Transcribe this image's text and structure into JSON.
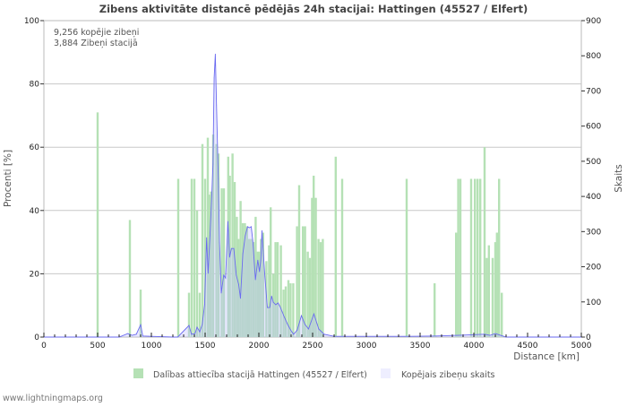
{
  "chart_data": {
    "type": "bar",
    "title": "Zibens aktivitāte distancē pēdējās 24h stacijai: Hattingen (45527 / Elfert)",
    "info_lines": [
      "9,256 kopējie zibeņi",
      "3,884 Zibeņi stacijā"
    ],
    "xlabel": "Distance   [km]",
    "ylabel": "Procenti   [%]",
    "y2label": "Skaits",
    "xlim": [
      0,
      5000
    ],
    "ylim": [
      0,
      100
    ],
    "y2lim": [
      0,
      900
    ],
    "xticks": [
      "0",
      "500",
      "1000",
      "1500",
      "2000",
      "2500",
      "3000",
      "3500",
      "4000",
      "4500",
      "5000"
    ],
    "yticks": [
      "0",
      "20",
      "40",
      "60",
      "80",
      "100"
    ],
    "y2ticks": [
      "0",
      "100",
      "200",
      "300",
      "400",
      "500",
      "600",
      "700",
      "800",
      "900"
    ],
    "grid": true,
    "legend_position": "bottom",
    "series": [
      {
        "name": "Dalības attiecība stacijā Hattingen (45527 / Elfert)",
        "type": "bar",
        "axis": "left",
        "color": "#b5e1b5",
        "x": [
          500,
          800,
          900,
          1250,
          1350,
          1375,
          1400,
          1425,
          1450,
          1475,
          1500,
          1525,
          1540,
          1555,
          1575,
          1605,
          1625,
          1655,
          1675,
          1715,
          1730,
          1755,
          1775,
          1795,
          1810,
          1830,
          1850,
          1870,
          1890,
          1910,
          1930,
          1950,
          1970,
          1990,
          2005,
          2020,
          2040,
          2070,
          2095,
          2110,
          2135,
          2155,
          2175,
          2205,
          2230,
          2250,
          2275,
          2295,
          2320,
          2355,
          2375,
          2410,
          2430,
          2455,
          2475,
          2495,
          2510,
          2530,
          2555,
          2575,
          2595,
          2715,
          2775,
          3375,
          3635,
          3835,
          3855,
          3875,
          3975,
          4010,
          4035,
          4060,
          4100,
          4120,
          4140,
          4175,
          4200,
          4215,
          4235,
          4260
        ],
        "values": [
          71,
          37,
          15,
          50,
          14,
          50,
          50,
          40,
          14,
          61,
          50,
          63,
          45,
          46,
          64,
          61,
          58,
          47,
          47,
          57,
          51,
          58,
          49,
          38,
          31,
          43,
          36,
          36,
          35,
          31,
          31,
          30,
          38,
          27,
          27,
          31,
          33,
          24,
          29,
          41,
          20,
          30,
          30,
          29,
          15,
          16,
          18,
          17,
          17,
          35,
          48,
          35,
          35,
          27,
          25,
          44,
          51,
          44,
          31,
          30,
          31,
          57,
          50,
          50,
          17,
          33,
          50,
          50,
          50,
          50,
          50,
          50,
          60,
          25,
          29,
          25,
          30,
          33,
          50,
          14
        ]
      },
      {
        "name": "Kopējais zibeņu skaits",
        "type": "area",
        "axis": "right",
        "color": "#6a6af0",
        "fill": "#eeeeff",
        "x": [
          0,
          700,
          780,
          820,
          860,
          900,
          920,
          1000,
          1200,
          1245,
          1350,
          1373,
          1406,
          1425,
          1450,
          1473,
          1495,
          1514,
          1528,
          1545,
          1562,
          1573,
          1584,
          1595,
          1606,
          1623,
          1634,
          1650,
          1673,
          1690,
          1712,
          1728,
          1745,
          1767,
          1790,
          1812,
          1829,
          1851,
          1873,
          1895,
          1912,
          1929,
          1945,
          1968,
          1990,
          2006,
          2018,
          2029,
          2040,
          2056,
          2079,
          2101,
          2118,
          2134,
          2157,
          2179,
          2201,
          2234,
          2268,
          2296,
          2323,
          2357,
          2396,
          2429,
          2462,
          2512,
          2557,
          2607,
          2700,
          3400,
          3650,
          3850,
          4100,
          4150,
          4200,
          4250,
          4300,
          5000
        ],
        "values": [
          0,
          0,
          10,
          5,
          8,
          35,
          3,
          2,
          0,
          0,
          33,
          8,
          10,
          28,
          15,
          36,
          92,
          283,
          181,
          288,
          405,
          492,
          737,
          805,
          660,
          449,
          270,
          125,
          176,
          168,
          329,
          227,
          252,
          252,
          176,
          150,
          110,
          237,
          288,
          314,
          311,
          314,
          270,
          163,
          219,
          186,
          219,
          303,
          245,
          173,
          84,
          84,
          117,
          99,
          92,
          97,
          84,
          59,
          36,
          20,
          8,
          20,
          61,
          36,
          23,
          66,
          23,
          8,
          2,
          2,
          3,
          5,
          8,
          5,
          10,
          5,
          0,
          0
        ]
      }
    ]
  },
  "watermark": "www.lightningmaps.org"
}
